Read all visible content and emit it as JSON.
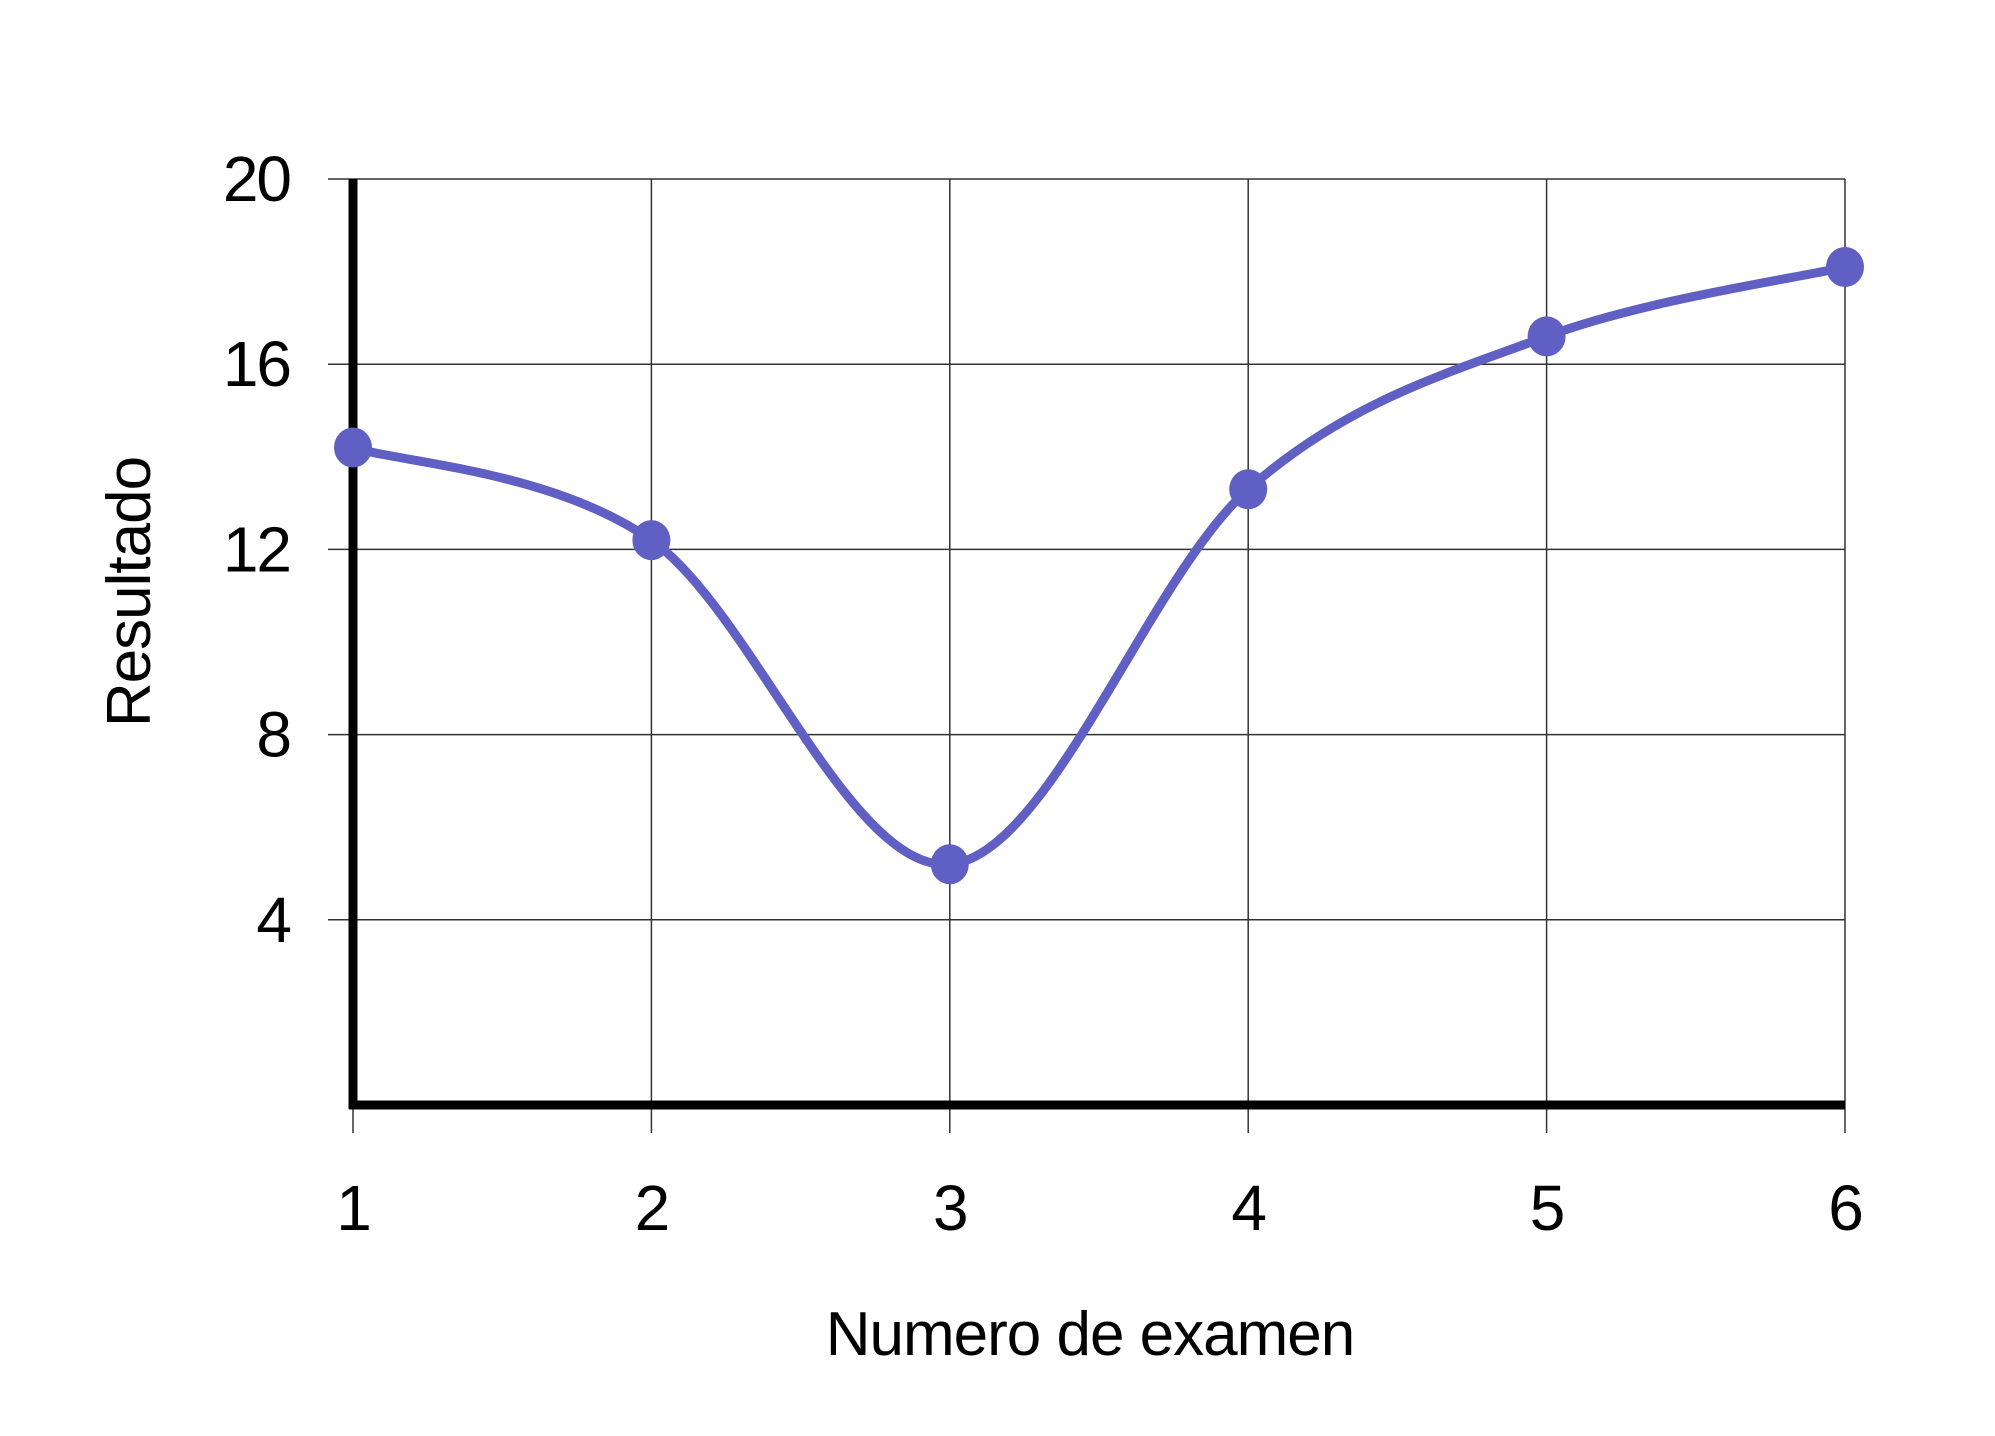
{
  "chart_data": {
    "type": "line",
    "title": "",
    "xlabel": "Numero de examen",
    "ylabel": "Resultado",
    "x": [
      1,
      2,
      3,
      4,
      5,
      6
    ],
    "x_tick_labels": [
      "1",
      "2",
      "3",
      "4",
      "5",
      "6"
    ],
    "y_tick_labels": [
      "4",
      "8",
      "12",
      "16",
      "20"
    ],
    "y_ticks": [
      4,
      8,
      12,
      16,
      20
    ],
    "xlim": [
      1,
      6
    ],
    "ylim": [
      0,
      20
    ],
    "series": [
      {
        "values": [
          14.2,
          12.2,
          5.2,
          13.3,
          16.6,
          18.1
        ],
        "color": "#5f5fc4",
        "smooth": true,
        "markers": true
      }
    ],
    "grid": true,
    "legend": "none",
    "axis_color": "#000000",
    "grid_color": "#333333"
  }
}
